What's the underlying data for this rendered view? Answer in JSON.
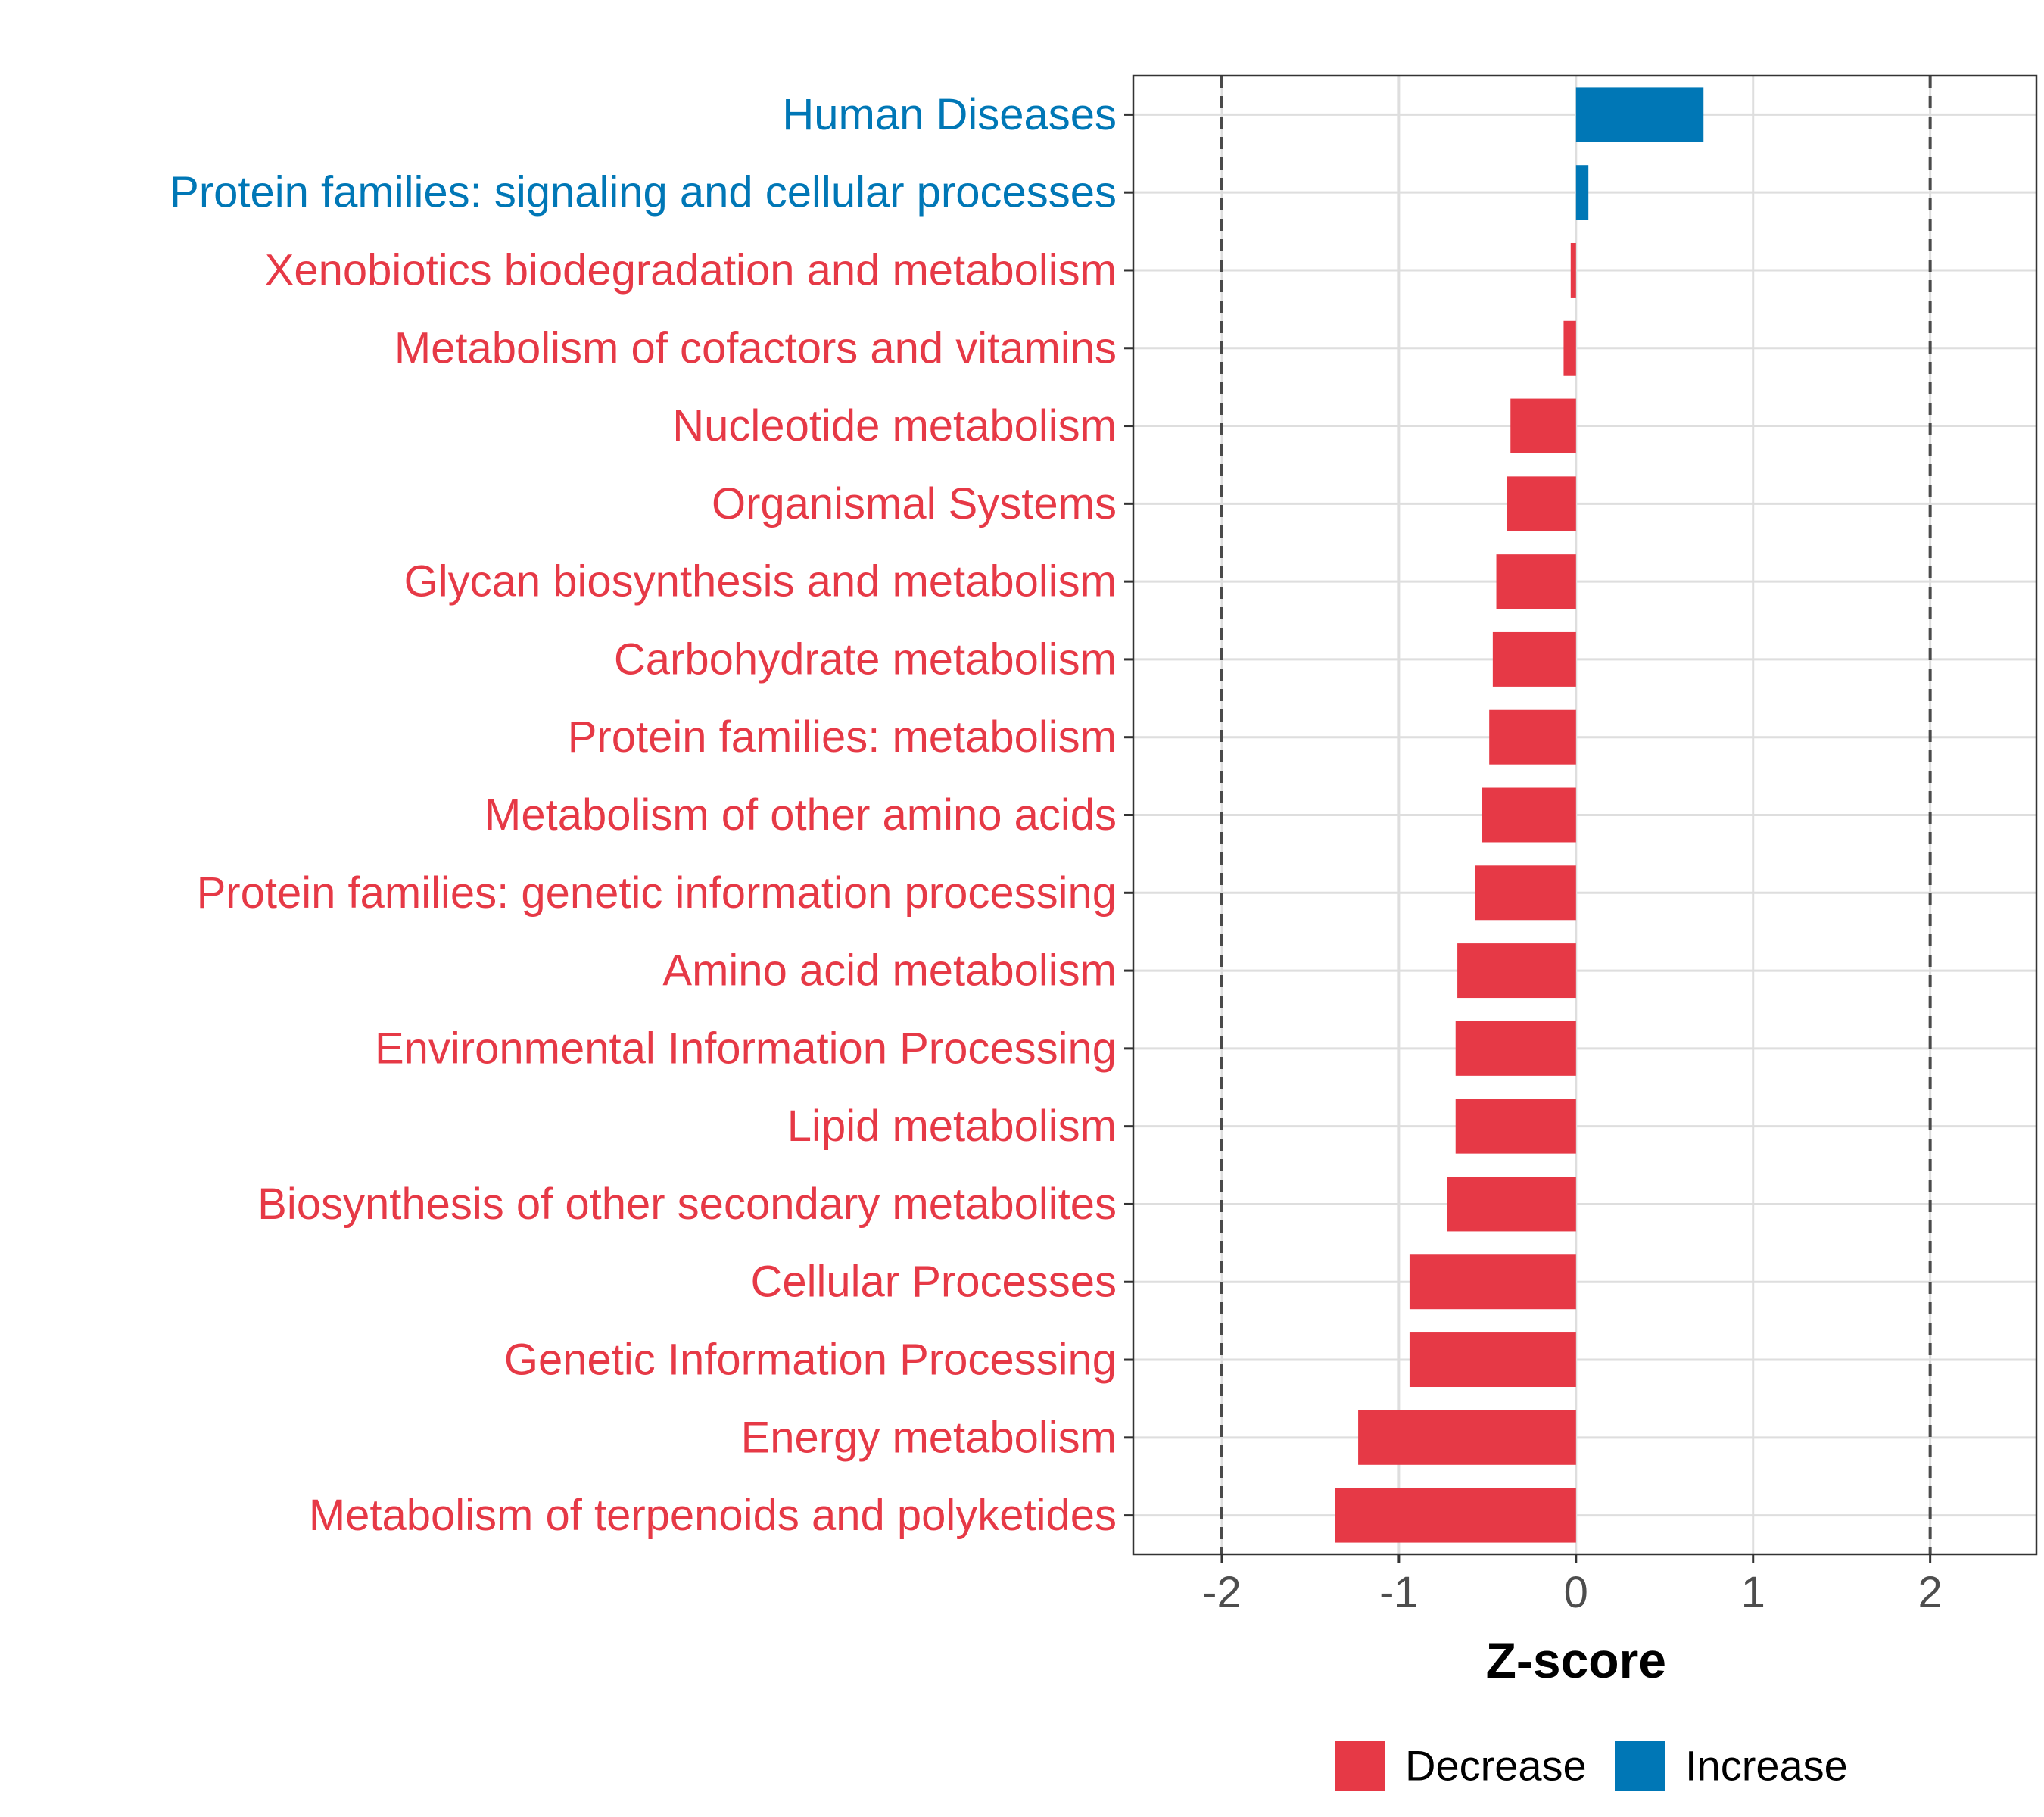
{
  "chart_data": {
    "type": "bar",
    "orientation": "horizontal",
    "xlabel": "Z-score",
    "xlim": [
      -2.5,
      2.6
    ],
    "xticks": [
      -2,
      -1,
      0,
      1,
      2
    ],
    "xtick_labels": [
      "-2",
      "-1",
      "0",
      "1",
      "2"
    ],
    "reference_lines": [
      -2,
      2
    ],
    "grid": true,
    "legend_position": "bottom",
    "legend": [
      {
        "label": "Decrease",
        "color": "#E63946"
      },
      {
        "label": "Increase",
        "color": "#0077B6"
      }
    ],
    "categories": [
      "Human Diseases",
      "Protein families: signaling and cellular processes",
      "Xenobiotics biodegradation and metabolism",
      "Metabolism of cofactors and vitamins",
      "Nucleotide metabolism",
      "Organismal Systems",
      "Glycan biosynthesis and metabolism",
      "Carbohydrate metabolism",
      "Protein families: metabolism",
      "Metabolism of other amino acids",
      "Protein families: genetic information processing",
      "Amino acid metabolism",
      "Environmental Information Processing",
      "Lipid metabolism",
      "Biosynthesis of other secondary metabolites",
      "Cellular Processes",
      "Genetic Information Processing",
      "Energy metabolism",
      "Metabolism of terpenoids and polyketides"
    ],
    "values": [
      0.72,
      0.07,
      -0.03,
      -0.07,
      -0.37,
      -0.39,
      -0.45,
      -0.47,
      -0.49,
      -0.53,
      -0.57,
      -0.67,
      -0.68,
      -0.68,
      -0.73,
      -0.94,
      -0.94,
      -1.23,
      -1.36
    ],
    "groups": [
      "Increase",
      "Increase",
      "Decrease",
      "Decrease",
      "Decrease",
      "Decrease",
      "Decrease",
      "Decrease",
      "Decrease",
      "Decrease",
      "Decrease",
      "Decrease",
      "Decrease",
      "Decrease",
      "Decrease",
      "Decrease",
      "Decrease",
      "Decrease",
      "Decrease"
    ],
    "colors": {
      "Decrease": "#E63946",
      "Increase": "#0077B6"
    }
  }
}
